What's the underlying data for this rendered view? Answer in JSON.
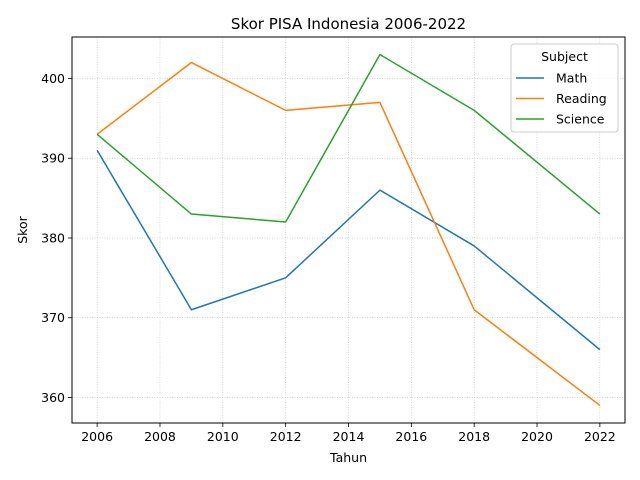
{
  "chart_data": {
    "type": "line",
    "title": "Skor PISA Indonesia 2006-2022",
    "xlabel": "Tahun",
    "ylabel": "Skor",
    "x": [
      2006,
      2009,
      2012,
      2015,
      2018,
      2022
    ],
    "xlim": [
      2005.2,
      2022.8
    ],
    "ylim": [
      356.8,
      405.2
    ],
    "xticks": [
      2006,
      2008,
      2010,
      2012,
      2014,
      2016,
      2018,
      2020,
      2022
    ],
    "yticks": [
      360,
      370,
      380,
      390,
      400
    ],
    "grid": true,
    "legend": {
      "title": "Subject",
      "placement": "top-right"
    },
    "series": [
      {
        "name": "Math",
        "color": "#1f77b4",
        "values": [
          391,
          371,
          375,
          386,
          379,
          366
        ]
      },
      {
        "name": "Reading",
        "color": "#ff7f0e",
        "values": [
          393,
          402,
          396,
          397,
          371,
          359
        ]
      },
      {
        "name": "Science",
        "color": "#2ca02c",
        "values": [
          393,
          383,
          382,
          403,
          396,
          383
        ]
      }
    ]
  }
}
